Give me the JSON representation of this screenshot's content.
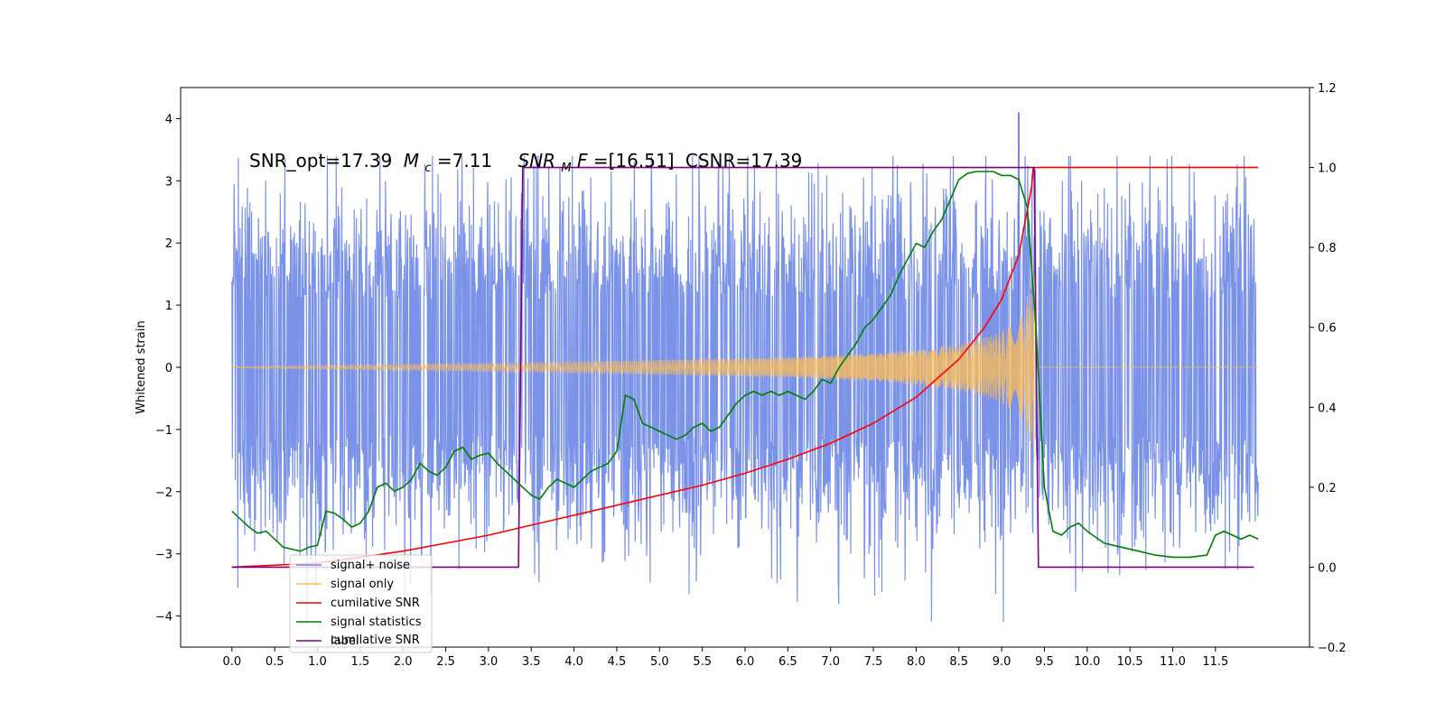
{
  "chart_data": {
    "type": "line",
    "annotation": {
      "snr_opt": "SNR_opt=17.39",
      "mc_symbol": "M",
      "mc_sub": "c",
      "mc_value": "=7.11",
      "snr_mf_symbol": "SNR",
      "snr_mf_sub": "M",
      "snr_mf_f": "F",
      "snr_mf_value": "=[16.51]",
      "csnr": "CSNR=17.39"
    },
    "xlabel": "",
    "ylabel": "Whitened strain",
    "xlim": [
      -0.6,
      12.6
    ],
    "ylim_left": [
      -4.5,
      4.5
    ],
    "ylim_right": [
      -0.2,
      1.2
    ],
    "x_ticks": [
      "0.0",
      "0.5",
      "1.0",
      "1.5",
      "2.0",
      "2.5",
      "3.0",
      "3.5",
      "4.0",
      "4.5",
      "5.0",
      "5.5",
      "6.0",
      "6.5",
      "7.0",
      "7.5",
      "8.0",
      "8.5",
      "9.0",
      "9.5",
      "10.0",
      "10.5",
      "11.0",
      "11.5"
    ],
    "y_ticks_left": [
      "4",
      "3",
      "2",
      "1",
      "0",
      "−1",
      "−2",
      "−3",
      "−4"
    ],
    "y_ticks_right": [
      "1.2",
      "1.0",
      "0.8",
      "0.6",
      "0.4",
      "0.2",
      "0.0",
      "−0.2"
    ],
    "legend": {
      "placement": "lower-left",
      "entries": [
        {
          "label": "signal+ noise",
          "color": "#6b86e6"
        },
        {
          "label": "signal only",
          "color": "#ffbe55"
        },
        {
          "label": "cumilative SNR",
          "color": "#ff0000"
        },
        {
          "label": "signal statistics",
          "color": "#008000"
        },
        {
          "label": "label",
          "color": "#800080"
        }
      ],
      "ghost_text": "cumilative SNR"
    },
    "series": [
      {
        "name": "signal+ noise",
        "axis": "left",
        "color": "#6b86e6",
        "envelope": {
          "x": [
            0,
            12
          ],
          "typical_amplitude": 2.0,
          "peak": [
            9.2,
            4.1
          ]
        }
      },
      {
        "name": "signal only",
        "axis": "left",
        "color": "#ffbe55",
        "x_start": 0.0,
        "x_merger": 9.38,
        "x_end": 12.0,
        "envelope_x": [
          0.0,
          3.4,
          6.5,
          7.5,
          8.0,
          8.5,
          8.9,
          9.1,
          9.25,
          9.35,
          9.38
        ],
        "envelope_y": [
          0.01,
          0.07,
          0.16,
          0.22,
          0.28,
          0.37,
          0.52,
          0.66,
          0.85,
          1.25,
          1.55
        ]
      },
      {
        "name": "cumilative SNR",
        "axis": "right",
        "color": "#ff0000",
        "x": [
          0.0,
          1.0,
          1.5,
          2.0,
          2.5,
          3.0,
          3.5,
          4.0,
          4.5,
          5.0,
          5.5,
          6.0,
          6.5,
          7.0,
          7.5,
          8.0,
          8.5,
          8.8,
          9.0,
          9.2,
          9.35,
          9.37,
          12.0
        ],
        "y": [
          0.0,
          0.01,
          0.025,
          0.04,
          0.06,
          0.08,
          0.105,
          0.13,
          0.155,
          0.18,
          0.205,
          0.235,
          0.27,
          0.31,
          0.36,
          0.425,
          0.52,
          0.6,
          0.67,
          0.78,
          0.95,
          1.0,
          1.0
        ]
      },
      {
        "name": "signal statistics",
        "axis": "right",
        "color": "#008000",
        "x": [
          0.0,
          0.1,
          0.2,
          0.3,
          0.4,
          0.5,
          0.6,
          0.7,
          0.8,
          0.9,
          1.0,
          1.1,
          1.2,
          1.3,
          1.4,
          1.5,
          1.6,
          1.7,
          1.8,
          1.9,
          2.0,
          2.1,
          2.2,
          2.3,
          2.4,
          2.5,
          2.6,
          2.7,
          2.8,
          2.9,
          3.0,
          3.1,
          3.2,
          3.3,
          3.4,
          3.5,
          3.6,
          3.7,
          3.8,
          3.9,
          4.0,
          4.1,
          4.2,
          4.3,
          4.4,
          4.5,
          4.6,
          4.7,
          4.8,
          4.9,
          5.0,
          5.1,
          5.2,
          5.3,
          5.4,
          5.5,
          5.6,
          5.7,
          5.8,
          5.9,
          6.0,
          6.1,
          6.2,
          6.3,
          6.4,
          6.5,
          6.6,
          6.7,
          6.8,
          6.9,
          7.0,
          7.1,
          7.2,
          7.3,
          7.4,
          7.5,
          7.6,
          7.7,
          7.8,
          7.9,
          8.0,
          8.1,
          8.2,
          8.3,
          8.4,
          8.5,
          8.6,
          8.7,
          8.8,
          8.9,
          9.0,
          9.1,
          9.2,
          9.3,
          9.4,
          9.5,
          9.6,
          9.7,
          9.8,
          9.9,
          10.0,
          10.2,
          10.4,
          10.6,
          10.8,
          11.0,
          11.2,
          11.4,
          11.5,
          11.6,
          11.8,
          11.9,
          12.0
        ],
        "y": [
          0.14,
          0.12,
          0.1,
          0.085,
          0.09,
          0.07,
          0.05,
          0.045,
          0.04,
          0.05,
          0.055,
          0.14,
          0.135,
          0.12,
          0.1,
          0.11,
          0.14,
          0.2,
          0.21,
          0.19,
          0.2,
          0.22,
          0.26,
          0.24,
          0.23,
          0.25,
          0.29,
          0.3,
          0.27,
          0.28,
          0.285,
          0.26,
          0.24,
          0.22,
          0.2,
          0.18,
          0.17,
          0.2,
          0.22,
          0.21,
          0.2,
          0.22,
          0.24,
          0.25,
          0.26,
          0.29,
          0.43,
          0.42,
          0.36,
          0.35,
          0.34,
          0.33,
          0.32,
          0.33,
          0.35,
          0.36,
          0.34,
          0.35,
          0.38,
          0.41,
          0.43,
          0.44,
          0.43,
          0.44,
          0.43,
          0.44,
          0.43,
          0.42,
          0.44,
          0.47,
          0.46,
          0.5,
          0.53,
          0.56,
          0.6,
          0.62,
          0.65,
          0.68,
          0.73,
          0.77,
          0.81,
          0.8,
          0.84,
          0.87,
          0.92,
          0.97,
          0.985,
          0.99,
          0.99,
          0.99,
          0.98,
          0.98,
          0.97,
          0.9,
          0.6,
          0.2,
          0.09,
          0.08,
          0.1,
          0.11,
          0.09,
          0.06,
          0.05,
          0.04,
          0.03,
          0.025,
          0.025,
          0.03,
          0.08,
          0.09,
          0.07,
          0.08,
          0.07
        ]
      },
      {
        "name": "label",
        "axis": "right",
        "color": "#800080",
        "x": [
          0.0,
          3.35,
          3.4,
          9.38,
          9.43,
          11.95
        ],
        "y": [
          0,
          0,
          1,
          1,
          0,
          0
        ]
      }
    ]
  }
}
